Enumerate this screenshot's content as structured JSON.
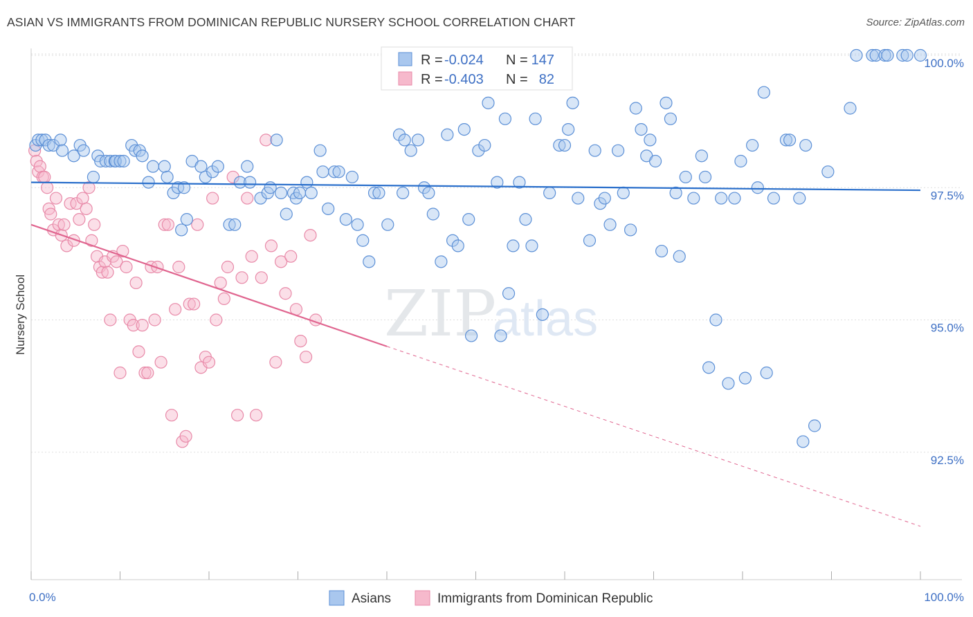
{
  "title": "ASIAN VS IMMIGRANTS FROM DOMINICAN REPUBLIC NURSERY SCHOOL CORRELATION CHART",
  "source": "Source: ZipAtlas.com",
  "watermark": {
    "zip": "ZIP",
    "atlas": "atlas"
  },
  "legend": {
    "rows": [
      {
        "r_label": "R =",
        "r_value": "-0.024",
        "n_label": "N =",
        "n_value": "147"
      },
      {
        "r_label": "R =",
        "r_value": "-0.403",
        "n_label": "N =",
        "n_value": "82"
      }
    ]
  },
  "bottom_legend": [
    "Asians",
    "Immigrants from Dominican Republic"
  ],
  "colors": {
    "asian_fill": "#a9c7ee",
    "asian_stroke": "#5b8fd6",
    "asian_line": "#2a6fcb",
    "dom_fill": "#f6b9cc",
    "dom_stroke": "#e889a8",
    "dom_line": "#e0658f",
    "label": "#3d6fc4",
    "grid": "#dddddd"
  },
  "chart_data": {
    "type": "scatter",
    "title": "ASIAN VS IMMIGRANTS FROM DOMINICAN REPUBLIC NURSERY SCHOOL CORRELATION CHART",
    "xlabel": "",
    "ylabel": "Nursery School",
    "xlim": [
      0,
      100
    ],
    "ylim": [
      90.2,
      100.4
    ],
    "x_tick_labels": [
      "0.0%",
      "100.0%"
    ],
    "y_ticks": [
      92.5,
      95.0,
      97.5,
      100.0
    ],
    "y_tick_labels": [
      "92.5%",
      "95.0%",
      "97.5%",
      "100.0%"
    ],
    "grid": true,
    "legend_placement": "top-center",
    "series": [
      {
        "name": "Asians",
        "r": -0.024,
        "n": 147,
        "trend": {
          "x": [
            0,
            100
          ],
          "y": [
            97.6,
            97.45
          ],
          "dashed_from": null
        },
        "points": [
          [
            0.5,
            98.3
          ],
          [
            0.8,
            98.4
          ],
          [
            1.2,
            98.4
          ],
          [
            1.6,
            98.4
          ],
          [
            2.0,
            98.3
          ],
          [
            2.5,
            98.3
          ],
          [
            3.3,
            98.4
          ],
          [
            3.5,
            98.2
          ],
          [
            4.8,
            98.1
          ],
          [
            5.5,
            98.3
          ],
          [
            5.9,
            98.2
          ],
          [
            7.0,
            97.7
          ],
          [
            7.5,
            98.1
          ],
          [
            7.8,
            98.0
          ],
          [
            8.4,
            98.0
          ],
          [
            8.9,
            98.0
          ],
          [
            9.4,
            98.0
          ],
          [
            9.5,
            98.0
          ],
          [
            10.0,
            98.0
          ],
          [
            10.4,
            98.0
          ],
          [
            11.3,
            98.3
          ],
          [
            11.7,
            98.2
          ],
          [
            12.2,
            98.2
          ],
          [
            12.5,
            98.1
          ],
          [
            13.2,
            97.6
          ],
          [
            13.7,
            97.9
          ],
          [
            15.0,
            97.9
          ],
          [
            15.3,
            97.7
          ],
          [
            16.0,
            97.4
          ],
          [
            16.5,
            97.5
          ],
          [
            16.9,
            96.7
          ],
          [
            17.2,
            97.5
          ],
          [
            17.5,
            96.9
          ],
          [
            18.1,
            98.0
          ],
          [
            19.1,
            97.9
          ],
          [
            19.6,
            97.7
          ],
          [
            20.4,
            97.8
          ],
          [
            21.0,
            97.9
          ],
          [
            22.3,
            96.8
          ],
          [
            22.9,
            96.8
          ],
          [
            23.5,
            97.6
          ],
          [
            24.3,
            97.9
          ],
          [
            24.6,
            97.6
          ],
          [
            25.8,
            97.3
          ],
          [
            26.6,
            97.4
          ],
          [
            26.9,
            97.5
          ],
          [
            27.6,
            98.4
          ],
          [
            28.1,
            97.4
          ],
          [
            28.7,
            97.0
          ],
          [
            29.5,
            97.4
          ],
          [
            29.8,
            97.3
          ],
          [
            30.2,
            97.4
          ],
          [
            31.0,
            97.6
          ],
          [
            31.5,
            97.4
          ],
          [
            32.5,
            98.2
          ],
          [
            32.8,
            97.8
          ],
          [
            33.4,
            97.1
          ],
          [
            34.1,
            97.8
          ],
          [
            34.6,
            97.8
          ],
          [
            35.4,
            96.9
          ],
          [
            36.1,
            97.7
          ],
          [
            36.7,
            96.8
          ],
          [
            37.3,
            96.5
          ],
          [
            38.0,
            96.1
          ],
          [
            38.6,
            97.4
          ],
          [
            39.1,
            97.4
          ],
          [
            40.1,
            96.8
          ],
          [
            41.4,
            98.5
          ],
          [
            41.8,
            97.4
          ],
          [
            42.0,
            98.4
          ],
          [
            42.7,
            98.2
          ],
          [
            43.5,
            98.4
          ],
          [
            44.2,
            97.5
          ],
          [
            44.7,
            97.4
          ],
          [
            45.2,
            97.0
          ],
          [
            46.1,
            96.1
          ],
          [
            46.8,
            98.5
          ],
          [
            47.4,
            96.5
          ],
          [
            48.0,
            96.4
          ],
          [
            48.7,
            98.6
          ],
          [
            49.2,
            96.9
          ],
          [
            49.5,
            94.7
          ],
          [
            50.3,
            98.2
          ],
          [
            51.0,
            98.3
          ],
          [
            51.4,
            99.1
          ],
          [
            52.4,
            97.6
          ],
          [
            52.8,
            94.7
          ],
          [
            53.3,
            98.8
          ],
          [
            53.7,
            95.5
          ],
          [
            54.2,
            96.4
          ],
          [
            54.9,
            97.6
          ],
          [
            55.6,
            96.9
          ],
          [
            56.3,
            96.4
          ],
          [
            56.7,
            98.8
          ],
          [
            57.5,
            95.1
          ],
          [
            58.3,
            97.4
          ],
          [
            59.4,
            98.3
          ],
          [
            60.0,
            98.3
          ],
          [
            60.4,
            98.6
          ],
          [
            60.9,
            99.1
          ],
          [
            61.5,
            97.3
          ],
          [
            62.8,
            96.5
          ],
          [
            63.4,
            98.2
          ],
          [
            64.0,
            97.2
          ],
          [
            64.5,
            97.3
          ],
          [
            65.1,
            96.8
          ],
          [
            66.0,
            98.2
          ],
          [
            66.6,
            97.4
          ],
          [
            67.4,
            96.7
          ],
          [
            68.0,
            99.0
          ],
          [
            68.6,
            98.6
          ],
          [
            69.2,
            98.1
          ],
          [
            69.6,
            98.4
          ],
          [
            70.2,
            98.0
          ],
          [
            70.9,
            96.3
          ],
          [
            71.4,
            99.1
          ],
          [
            71.9,
            98.8
          ],
          [
            72.5,
            97.4
          ],
          [
            72.9,
            96.2
          ],
          [
            73.6,
            97.7
          ],
          [
            74.5,
            97.3
          ],
          [
            75.4,
            98.1
          ],
          [
            75.8,
            97.7
          ],
          [
            76.2,
            94.1
          ],
          [
            77.0,
            95.0
          ],
          [
            77.6,
            97.3
          ],
          [
            78.4,
            93.8
          ],
          [
            79.1,
            97.3
          ],
          [
            79.8,
            98.0
          ],
          [
            80.3,
            93.9
          ],
          [
            81.1,
            98.3
          ],
          [
            81.7,
            97.5
          ],
          [
            82.4,
            99.3
          ],
          [
            82.7,
            94.0
          ],
          [
            83.5,
            97.3
          ],
          [
            84.9,
            98.4
          ],
          [
            85.3,
            98.4
          ],
          [
            86.4,
            97.3
          ],
          [
            86.8,
            92.7
          ],
          [
            87.1,
            98.3
          ],
          [
            88.1,
            93.0
          ],
          [
            89.6,
            97.8
          ],
          [
            92.1,
            99.0
          ],
          [
            92.8,
            100.0
          ],
          [
            94.6,
            100.0
          ],
          [
            95.0,
            100.0
          ],
          [
            96.0,
            100.0
          ],
          [
            96.3,
            100.0
          ],
          [
            98.0,
            100.0
          ],
          [
            98.5,
            100.0
          ],
          [
            100.0,
            100.0
          ]
        ]
      },
      {
        "name": "Immigrants from Dominican Republic",
        "r": -0.403,
        "n": 82,
        "trend": {
          "x": [
            0,
            40,
            100
          ],
          "y": [
            96.8,
            94.5,
            91.1
          ],
          "dashed_from": 40
        },
        "points": [
          [
            0.4,
            98.2
          ],
          [
            0.6,
            98.0
          ],
          [
            0.8,
            97.8
          ],
          [
            1.0,
            97.9
          ],
          [
            1.3,
            97.7
          ],
          [
            1.5,
            97.7
          ],
          [
            1.8,
            97.5
          ],
          [
            2.0,
            97.1
          ],
          [
            2.2,
            97.0
          ],
          [
            2.5,
            96.7
          ],
          [
            2.8,
            97.3
          ],
          [
            3.1,
            96.8
          ],
          [
            3.4,
            96.6
          ],
          [
            3.7,
            96.8
          ],
          [
            4.0,
            96.4
          ],
          [
            4.4,
            97.2
          ],
          [
            4.8,
            96.5
          ],
          [
            5.1,
            97.2
          ],
          [
            5.4,
            96.9
          ],
          [
            5.8,
            97.3
          ],
          [
            6.2,
            97.1
          ],
          [
            6.5,
            97.5
          ],
          [
            6.8,
            96.5
          ],
          [
            7.1,
            96.8
          ],
          [
            7.4,
            96.2
          ],
          [
            7.7,
            96.0
          ],
          [
            8.0,
            95.9
          ],
          [
            8.3,
            96.1
          ],
          [
            8.6,
            95.9
          ],
          [
            8.9,
            95.0
          ],
          [
            9.2,
            96.2
          ],
          [
            9.6,
            96.1
          ],
          [
            10.0,
            94.0
          ],
          [
            10.3,
            96.3
          ],
          [
            10.7,
            96.0
          ],
          [
            11.1,
            95.0
          ],
          [
            11.5,
            94.9
          ],
          [
            11.8,
            95.7
          ],
          [
            12.1,
            94.4
          ],
          [
            12.5,
            94.9
          ],
          [
            12.8,
            94.0
          ],
          [
            13.1,
            94.0
          ],
          [
            13.5,
            96.0
          ],
          [
            13.9,
            95.0
          ],
          [
            14.2,
            96.0
          ],
          [
            14.6,
            94.2
          ],
          [
            15.0,
            96.8
          ],
          [
            15.4,
            96.8
          ],
          [
            15.8,
            93.2
          ],
          [
            16.2,
            95.2
          ],
          [
            16.6,
            96.0
          ],
          [
            17.0,
            92.7
          ],
          [
            17.4,
            92.8
          ],
          [
            17.8,
            95.3
          ],
          [
            18.3,
            95.3
          ],
          [
            18.7,
            96.8
          ],
          [
            19.1,
            94.1
          ],
          [
            19.6,
            94.3
          ],
          [
            20.0,
            94.2
          ],
          [
            20.4,
            97.3
          ],
          [
            20.8,
            95.0
          ],
          [
            21.3,
            95.7
          ],
          [
            21.7,
            95.4
          ],
          [
            22.1,
            96.0
          ],
          [
            22.7,
            97.7
          ],
          [
            23.2,
            93.2
          ],
          [
            23.7,
            95.8
          ],
          [
            24.3,
            97.3
          ],
          [
            24.8,
            96.2
          ],
          [
            25.3,
            93.2
          ],
          [
            25.9,
            95.8
          ],
          [
            26.4,
            98.4
          ],
          [
            27.0,
            96.4
          ],
          [
            27.5,
            94.2
          ],
          [
            28.1,
            96.1
          ],
          [
            28.6,
            95.5
          ],
          [
            29.2,
            96.2
          ],
          [
            29.8,
            95.2
          ],
          [
            30.3,
            94.6
          ],
          [
            30.9,
            94.3
          ],
          [
            31.4,
            96.6
          ],
          [
            32.0,
            95.0
          ]
        ]
      }
    ]
  }
}
